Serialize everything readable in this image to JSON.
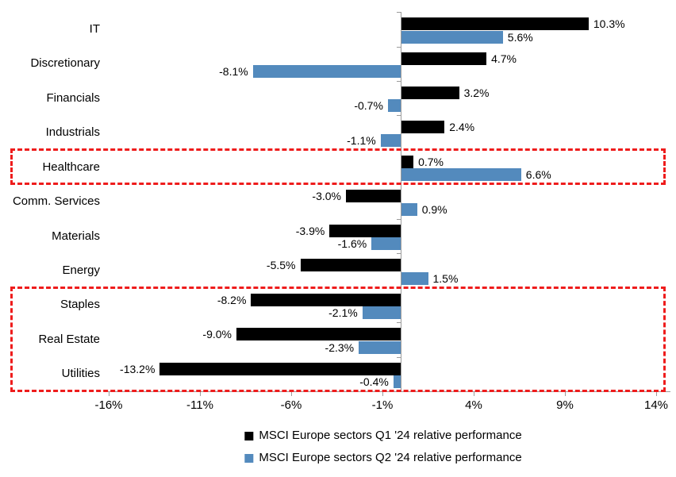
{
  "chart_data": {
    "type": "bar",
    "orientation": "horizontal",
    "title": "",
    "categories": [
      "IT",
      "Discretionary",
      "Financials",
      "Industrials",
      "Healthcare",
      "Comm. Services",
      "Materials",
      "Energy",
      "Staples",
      "Real Estate",
      "Utilities"
    ],
    "series": [
      {
        "name": "MSCI Europe sectors Q1 '24 relative performance",
        "color": "#000000",
        "values": [
          10.3,
          4.7,
          3.2,
          2.4,
          0.7,
          -3.0,
          -3.9,
          -5.5,
          -8.2,
          -9.0,
          -13.2
        ],
        "labels": [
          "10.3%",
          "4.7%",
          "3.2%",
          "2.4%",
          "0.7%",
          "-3.0%",
          "-3.9%",
          "-5.5%",
          "-8.2%",
          "-9.0%",
          "-13.2%"
        ]
      },
      {
        "name": "MSCI Europe sectors Q2 '24 relative performance",
        "color": "#538abd",
        "values": [
          5.6,
          -8.1,
          -0.7,
          -1.1,
          6.6,
          0.9,
          -1.6,
          1.5,
          -2.1,
          -2.3,
          -0.4
        ],
        "labels": [
          "5.6%",
          "-8.1%",
          "-0.7%",
          "-1.1%",
          "6.6%",
          "0.9%",
          "-1.6%",
          "1.5%",
          "-2.1%",
          "-2.3%",
          "-0.4%"
        ]
      }
    ],
    "x_axis": {
      "min": -16,
      "max": 14,
      "tick_interval": 5,
      "ticks": [
        -16,
        -11,
        -6,
        -1,
        4,
        9,
        14
      ],
      "tick_labels": [
        "-16%",
        "-11%",
        "-6%",
        "-1%",
        "4%",
        "9%",
        "14%"
      ]
    },
    "grid": false,
    "legend_position": "bottom",
    "axis_color": "#9b9b9b",
    "highlight_color": "#ee1c1c",
    "highlights": [
      {
        "name": "healthcare-box",
        "rows": [
          "Healthcare"
        ],
        "style": "dashed"
      },
      {
        "name": "defensives-box",
        "rows": [
          "Staples",
          "Real Estate",
          "Utilities"
        ],
        "style": "dashed"
      }
    ]
  }
}
